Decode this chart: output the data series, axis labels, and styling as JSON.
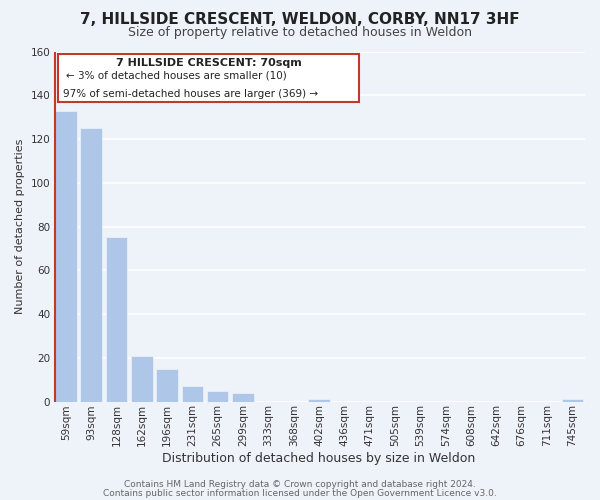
{
  "title": "7, HILLSIDE CRESCENT, WELDON, CORBY, NN17 3HF",
  "subtitle": "Size of property relative to detached houses in Weldon",
  "xlabel": "Distribution of detached houses by size in Weldon",
  "ylabel": "Number of detached properties",
  "bar_labels": [
    "59sqm",
    "93sqm",
    "128sqm",
    "162sqm",
    "196sqm",
    "231sqm",
    "265sqm",
    "299sqm",
    "333sqm",
    "368sqm",
    "402sqm",
    "436sqm",
    "471sqm",
    "505sqm",
    "539sqm",
    "574sqm",
    "608sqm",
    "642sqm",
    "676sqm",
    "711sqm",
    "745sqm"
  ],
  "bar_values": [
    133,
    125,
    75,
    21,
    15,
    7,
    5,
    4,
    0,
    0,
    1,
    0,
    0,
    0,
    0,
    0,
    0,
    0,
    0,
    0,
    1
  ],
  "bar_color": "#aec6e8",
  "highlight_color": "#c0392b",
  "highlight_index": 0,
  "ylim": [
    0,
    160
  ],
  "yticks": [
    0,
    20,
    40,
    60,
    80,
    100,
    120,
    140,
    160
  ],
  "annotation_title": "7 HILLSIDE CRESCENT: 70sqm",
  "annotation_line1": "← 3% of detached houses are smaller (10)",
  "annotation_line2": "97% of semi-detached houses are larger (369) →",
  "footer_line1": "Contains HM Land Registry data © Crown copyright and database right 2024.",
  "footer_line2": "Contains public sector information licensed under the Open Government Licence v3.0.",
  "background_color": "#eef2f9",
  "grid_color": "#ffffff",
  "title_fontsize": 11,
  "subtitle_fontsize": 9,
  "xlabel_fontsize": 9,
  "ylabel_fontsize": 8,
  "tick_fontsize": 7.5,
  "footer_fontsize": 6.5
}
